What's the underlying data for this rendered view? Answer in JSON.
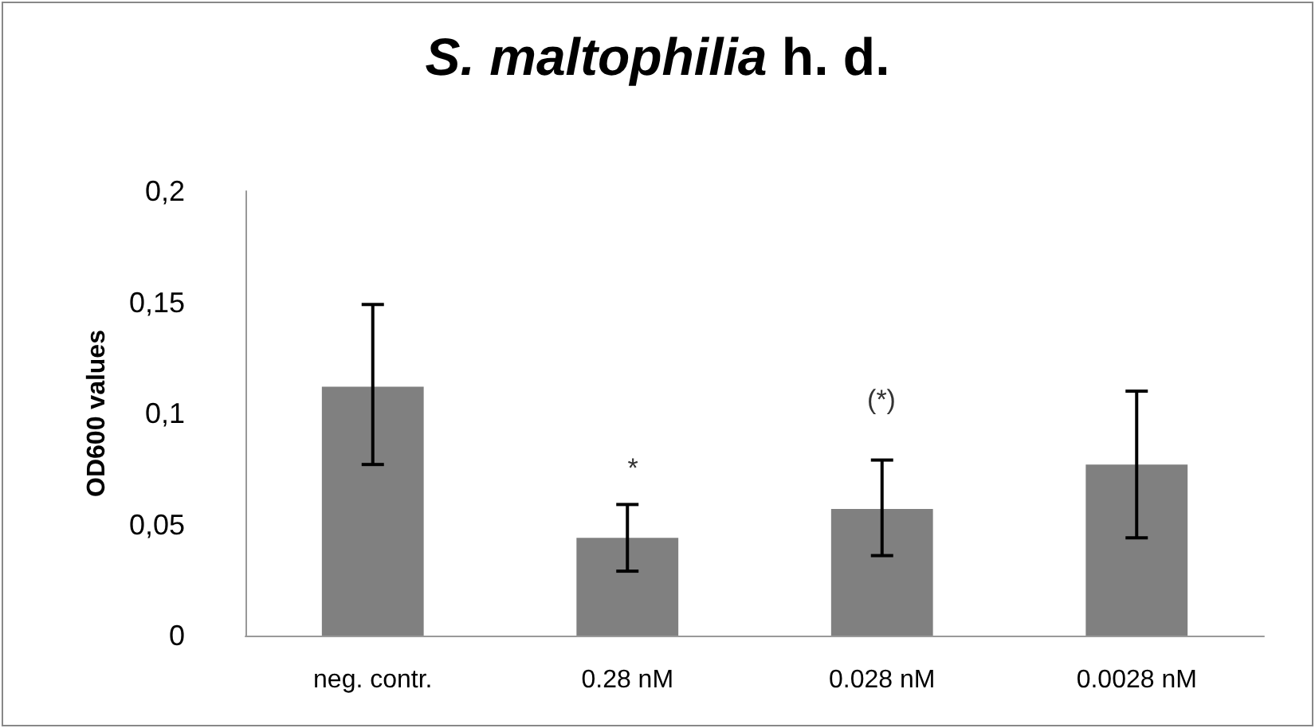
{
  "chart_data": {
    "type": "bar",
    "title": "S. maltophilia h. d.",
    "ylabel": "OD600 values",
    "categories": [
      "neg. contr.",
      "0.28 nM",
      "0.028 nM",
      "0.0028 nM"
    ],
    "values": [
      0.112,
      0.044,
      0.057,
      0.077
    ],
    "errors": [
      [
        0.077,
        0.149
      ],
      [
        0.029,
        0.059
      ],
      [
        0.036,
        0.079
      ],
      [
        0.044,
        0.11
      ]
    ],
    "color": "#808080",
    "ylim": [
      0,
      0.2
    ],
    "yticks": [
      {
        "value": 0,
        "label": "0"
      },
      {
        "value": 0.05,
        "label": "0,05"
      },
      {
        "value": 0.1,
        "label": "0,1"
      },
      {
        "value": 0.15,
        "label": "0,15"
      },
      {
        "value": 0.2,
        "label": "0,2"
      }
    ],
    "grid": false,
    "annotations": [
      "*",
      "(*)"
    ]
  }
}
